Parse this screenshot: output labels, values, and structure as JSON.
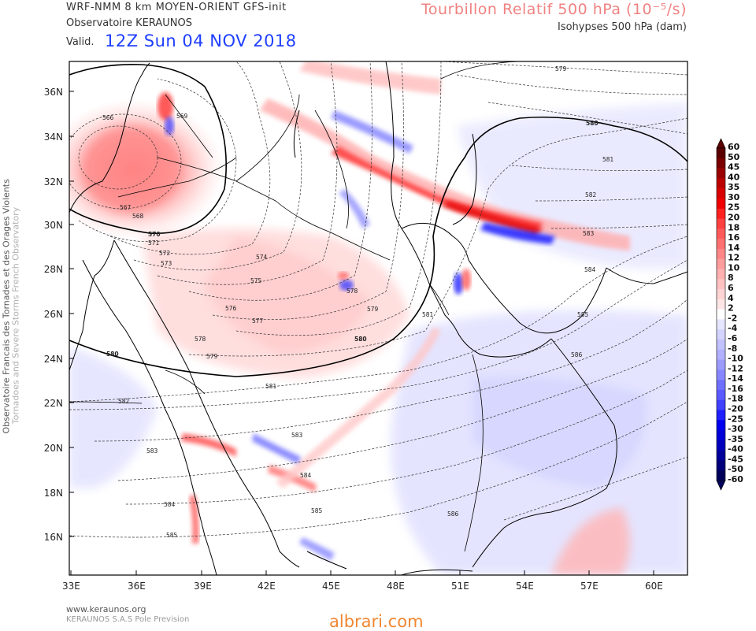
{
  "header": {
    "model": "WRF-NMM 8 km MOYEN-ORIENT  GFS-init",
    "organization": "Observatoire KERAUNOS",
    "valid_label": "Valid.",
    "valid_time": "12Z Sun 04 NOV 2018",
    "field_title": "Tourbillon Relatif 500 hPa (10⁻⁵/s)",
    "contour_title": "Isohypses 500 hPa (dam)"
  },
  "side_credit": {
    "line1": "Observatoire Francais des Tornades et des Orages Violents",
    "line2": "Tornadoes and Severe Storms French Observatory"
  },
  "footer": {
    "website": "www.keraunos.org",
    "company": "KERAUNOS S.A.S Pole Prevision",
    "watermark": "albrari.com"
  },
  "map": {
    "lon_labels": [
      "33E",
      "36E",
      "39E",
      "42E",
      "45E",
      "48E",
      "51E",
      "54E",
      "57E",
      "60E"
    ],
    "lat_labels": [
      "36N",
      "34N",
      "32N",
      "30N",
      "28N",
      "26N",
      "24N",
      "22N",
      "20N",
      "18N",
      "16N"
    ],
    "contour_labels": [
      "566",
      "567",
      "568",
      "569",
      "570",
      "571",
      "572",
      "573",
      "574",
      "575",
      "576",
      "577",
      "578",
      "578",
      "579",
      "579",
      "580",
      "580",
      "580",
      "581",
      "581",
      "581",
      "582",
      "582",
      "583",
      "583",
      "583",
      "584",
      "584",
      "584",
      "585",
      "585",
      "585",
      "586",
      "586",
      "579"
    ]
  },
  "colorbar": {
    "labels": [
      "60",
      "50",
      "45",
      "40",
      "35",
      "30",
      "25",
      "20",
      "18",
      "16",
      "14",
      "12",
      "10",
      "8",
      "6",
      "4",
      "2",
      "-2",
      "-4",
      "-6",
      "-8",
      "-10",
      "-12",
      "-14",
      "-16",
      "-18",
      "-20",
      "-25",
      "-30",
      "-35",
      "-40",
      "-45",
      "-50",
      "-60"
    ],
    "colors": [
      "#5a0000",
      "#7a0000",
      "#9a0000",
      "#bc0000",
      "#d80000",
      "#f00000",
      "#ff2020",
      "#ff4040",
      "#ff5a5a",
      "#ff7070",
      "#ff8686",
      "#ff9c9c",
      "#ffb0b0",
      "#ffc2c2",
      "#ffd4d4",
      "#ffe6e6",
      "#ffffff",
      "#e6e6ff",
      "#d4d4ff",
      "#c2c2ff",
      "#b0b0ff",
      "#9c9cff",
      "#8686ff",
      "#7070ff",
      "#5a5aff",
      "#4040ff",
      "#2020ff",
      "#0000f0",
      "#0000d8",
      "#0000bc",
      "#00009a",
      "#00007a",
      "#00005a"
    ]
  }
}
